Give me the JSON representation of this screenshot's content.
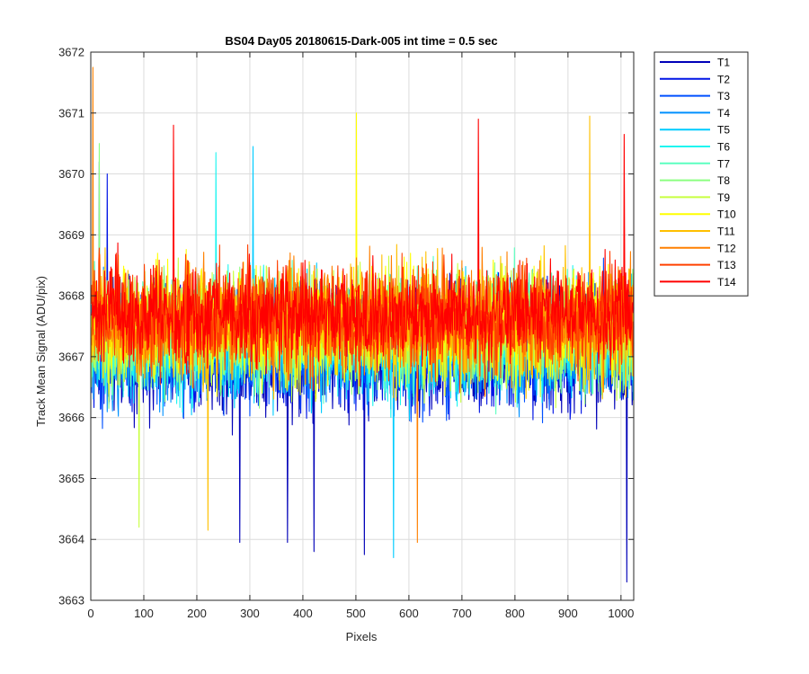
{
  "chart_data": {
    "type": "line",
    "title": "BS04 Day05 20180615-Dark-005 int time = 0.5 sec",
    "xlabel": "Pixels",
    "ylabel": "Track Mean Signal (ADU/pix)",
    "xlim": [
      0,
      1024
    ],
    "ylim": [
      3663,
      3672
    ],
    "xticks": [
      0,
      100,
      200,
      300,
      400,
      500,
      600,
      700,
      800,
      900,
      1000
    ],
    "yticks": [
      3663,
      3664,
      3665,
      3666,
      3667,
      3668,
      3669,
      3670,
      3671,
      3672
    ],
    "grid": true,
    "legend_position": "outside-top-right",
    "series": [
      {
        "name": "T1",
        "color": "#0000b8",
        "mean": 3667.05,
        "noise": 0.95,
        "spikes": [
          [
            280,
            3663.95
          ],
          [
            370,
            3663.95
          ],
          [
            420,
            3663.8
          ],
          [
            515,
            3663.75
          ],
          [
            1010,
            3663.3
          ],
          [
            15,
            3670.2
          ]
        ]
      },
      {
        "name": "T2",
        "color": "#0014e6",
        "mean": 3667.1,
        "noise": 0.9,
        "spikes": [
          [
            30,
            3670.0
          ]
        ]
      },
      {
        "name": "T3",
        "color": "#0050ff",
        "mean": 3667.15,
        "noise": 0.9,
        "spikes": []
      },
      {
        "name": "T4",
        "color": "#0090ff",
        "mean": 3667.2,
        "noise": 0.9,
        "spikes": []
      },
      {
        "name": "T5",
        "color": "#00ccff",
        "mean": 3667.25,
        "noise": 0.9,
        "spikes": [
          [
            570,
            3663.7
          ],
          [
            305,
            3670.45
          ]
        ]
      },
      {
        "name": "T6",
        "color": "#1ff5f0",
        "mean": 3667.3,
        "noise": 0.9,
        "spikes": [
          [
            235,
            3670.35
          ]
        ]
      },
      {
        "name": "T7",
        "color": "#5cffc0",
        "mean": 3667.35,
        "noise": 0.9,
        "spikes": []
      },
      {
        "name": "T8",
        "color": "#8cff80",
        "mean": 3667.4,
        "noise": 0.9,
        "spikes": [
          [
            15,
            3670.5
          ]
        ]
      },
      {
        "name": "T9",
        "color": "#c8ff40",
        "mean": 3667.45,
        "noise": 0.9,
        "spikes": [
          [
            90,
            3664.2
          ]
        ]
      },
      {
        "name": "T10",
        "color": "#ffff00",
        "mean": 3667.5,
        "noise": 0.9,
        "spikes": [
          [
            500,
            3671.0
          ]
        ]
      },
      {
        "name": "T11",
        "color": "#ffc000",
        "mean": 3667.55,
        "noise": 0.9,
        "spikes": [
          [
            940,
            3670.95
          ],
          [
            220,
            3664.15
          ]
        ]
      },
      {
        "name": "T12",
        "color": "#ff8000",
        "mean": 3667.6,
        "noise": 0.85,
        "spikes": [
          [
            3,
            3671.75
          ],
          [
            615,
            3663.95
          ]
        ]
      },
      {
        "name": "T13",
        "color": "#ff4000",
        "mean": 3667.65,
        "noise": 0.85,
        "spikes": []
      },
      {
        "name": "T14",
        "color": "#ff0000",
        "mean": 3667.7,
        "noise": 0.8,
        "spikes": [
          [
            155,
            3670.8
          ],
          [
            730,
            3670.9
          ],
          [
            1005,
            3670.65
          ]
        ]
      }
    ]
  }
}
